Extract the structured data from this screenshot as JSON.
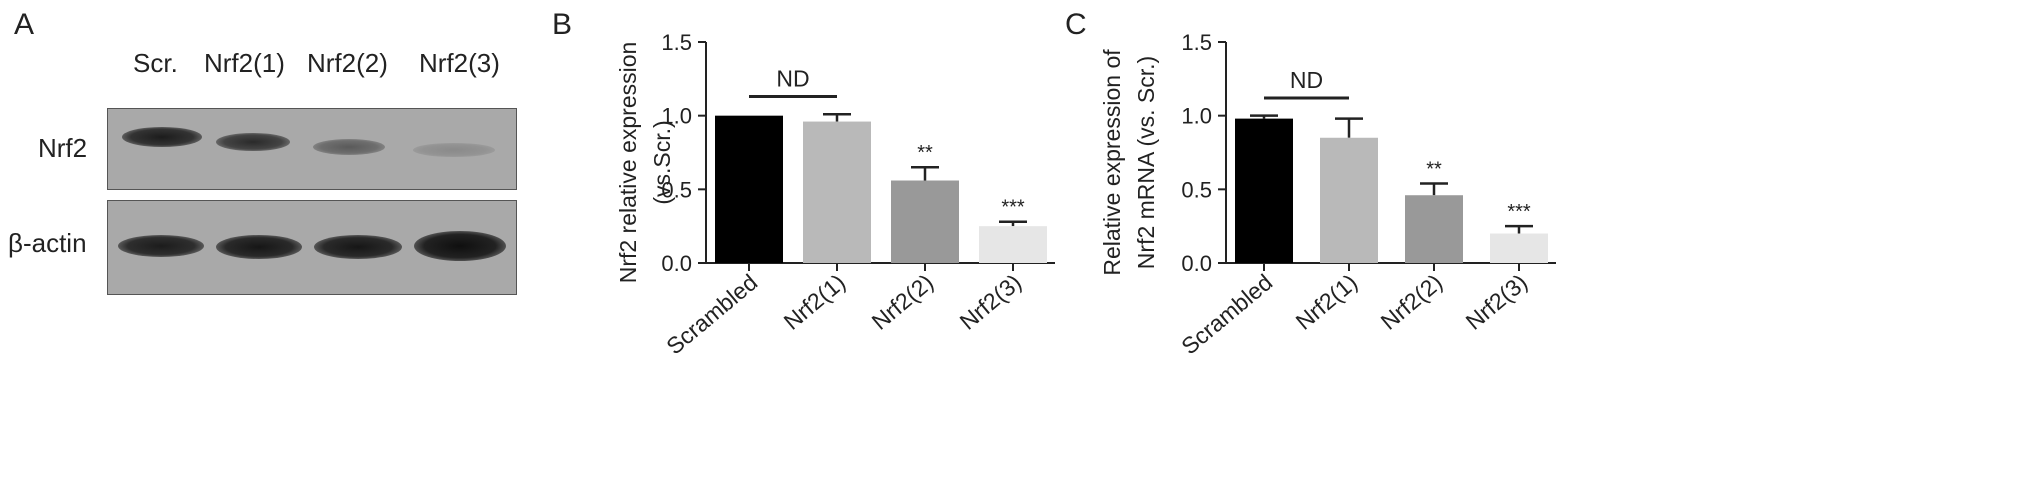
{
  "panels": {
    "a": "A",
    "b": "B",
    "c": "C"
  },
  "western_blot": {
    "lanes": [
      "Scr.",
      "Nrf2(1)",
      "Nrf2(2)",
      "Nrf2(3)"
    ],
    "rows": [
      "Nrf2",
      "β-actin"
    ]
  },
  "chart_data": [
    {
      "type": "bar",
      "panel": "B",
      "categories": [
        "Scrambled",
        "Nrf2(1)",
        "Nrf2(2)",
        "Nrf2(3)"
      ],
      "values": [
        1.0,
        0.96,
        0.56,
        0.25
      ],
      "errors": [
        0.0,
        0.05,
        0.09,
        0.03
      ],
      "significance": [
        "",
        "",
        "**",
        "***"
      ],
      "comparison_bar": {
        "from": 0,
        "to": 1,
        "label": "ND"
      },
      "ylabel": "Nrf2 relative expression (vs.Scr.)",
      "ylabel_lines": [
        "Nrf2 relative expression",
        "(vs.Scr.)"
      ],
      "ylim": [
        0,
        1.5
      ],
      "yticks": [
        "0.0",
        "0.5",
        "1.0",
        "1.5"
      ],
      "colors": [
        "#000000",
        "#b9b9b9",
        "#999999",
        "#e6e6e6"
      ]
    },
    {
      "type": "bar",
      "panel": "C",
      "categories": [
        "Scrambled",
        "Nrf2(1)",
        "Nrf2(2)",
        "Nrf2(3)"
      ],
      "values": [
        0.98,
        0.85,
        0.46,
        0.2
      ],
      "errors": [
        0.02,
        0.13,
        0.08,
        0.05
      ],
      "significance": [
        "",
        "",
        "**",
        "***"
      ],
      "comparison_bar": {
        "from": 0,
        "to": 1,
        "label": "ND"
      },
      "ylabel": "Relative expression of Nrf2 mRNA (vs. Scr.)",
      "ylabel_lines": [
        "Relative expression of",
        "Nrf2 mRNA (vs. Scr.)"
      ],
      "ylim": [
        0,
        1.5
      ],
      "yticks": [
        "0.0",
        "0.5",
        "1.0",
        "1.5"
      ],
      "colors": [
        "#000000",
        "#b9b9b9",
        "#999999",
        "#e6e6e6"
      ]
    }
  ]
}
